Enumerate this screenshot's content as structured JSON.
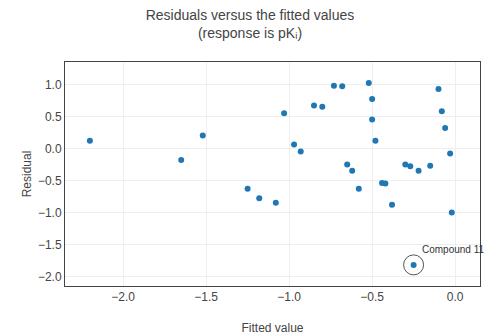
{
  "chart_data": {
    "type": "scatter",
    "title": "Residuals versus the fitted values",
    "subtitle": "(response is pKᵢ)",
    "xlabel": "Fitted value",
    "ylabel": "Residual",
    "x": [
      -2.2,
      -1.65,
      -1.52,
      -1.25,
      -1.18,
      -1.08,
      -1.03,
      -0.97,
      -0.93,
      -0.85,
      -0.8,
      -0.73,
      -0.68,
      -0.65,
      -0.62,
      -0.58,
      -0.52,
      -0.5,
      -0.5,
      -0.48,
      -0.44,
      -0.42,
      -0.38,
      -0.3,
      -0.27,
      -0.22,
      -0.15,
      -0.1,
      -0.08,
      -0.06,
      -0.03,
      -0.02,
      -0.25
    ],
    "values": [
      0.12,
      -0.18,
      0.2,
      -0.63,
      -0.78,
      -0.85,
      0.55,
      0.06,
      -0.05,
      0.67,
      0.65,
      0.98,
      0.97,
      -0.25,
      -0.35,
      -0.63,
      1.02,
      0.77,
      0.45,
      0.12,
      -0.54,
      -0.55,
      -0.88,
      -0.25,
      -0.28,
      -0.35,
      -0.27,
      0.93,
      0.58,
      0.32,
      -0.08,
      -1.0,
      -1.82
    ],
    "xlim": [
      -2.35,
      0.15
    ],
    "ylim": [
      -2.15,
      1.35
    ],
    "xticks": [
      {
        "value": -2.0,
        "label": "−2.0"
      },
      {
        "value": -1.5,
        "label": "−1.5"
      },
      {
        "value": -1.0,
        "label": "−1.0"
      },
      {
        "value": -0.5,
        "label": "−0.5"
      },
      {
        "value": 0.0,
        "label": "0.0"
      }
    ],
    "yticks": [
      {
        "value": -2.0,
        "label": "−2.0"
      },
      {
        "value": -1.5,
        "label": "−1.5"
      },
      {
        "value": -1.0,
        "label": "−1.0"
      },
      {
        "value": -0.5,
        "label": "−0.5"
      },
      {
        "value": 0.0,
        "label": "0.0"
      },
      0.5,
      {
        "value": 1.0,
        "label": "1.0"
      }
    ],
    "grid": true,
    "annotations": [
      {
        "text": "Compound 11",
        "x": -0.25,
        "y": -1.82
      }
    ]
  }
}
